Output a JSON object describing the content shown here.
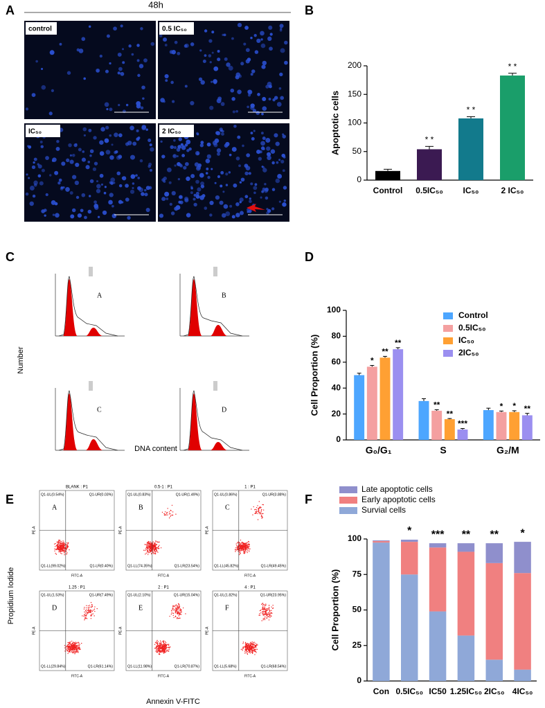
{
  "figure": {
    "panel_letters": [
      "A",
      "B",
      "C",
      "D",
      "E",
      "F"
    ],
    "microscopy": {
      "title": "48h",
      "labels": [
        "control",
        "0.5 IC₅₀",
        "IC₅₀",
        "2 IC₅₀"
      ]
    },
    "cell_cycle": {
      "labels": [
        "A",
        "B",
        "C",
        "D"
      ],
      "y_label": "Number",
      "x_label": "DNA content"
    },
    "flow": {
      "axis_y": "PE-A",
      "axis_x": "FITC-A",
      "y_label": "Propidium Iodide",
      "x_label": "Annexin V-FITC",
      "panels": [
        {
          "title": "BLANK : P1",
          "letter": "A",
          "quadrants": [
            "Q1-UL(0.54%)",
            "Q1-UR(0.03%)",
            "Q1-LL(99.02%)",
            "Q1-LR(0.40%)"
          ]
        },
        {
          "title": "0.5-1 : P1",
          "letter": "B",
          "quadrants": [
            "Q1-UL(0.83%)",
            "Q1-UR(1.49%)",
            "Q1-LL(74.35%)",
            "Q1-LR(23.54%)"
          ]
        },
        {
          "title": "1 : P1",
          "letter": "C",
          "quadrants": [
            "Q1-UL(0.86%)",
            "Q1-UR(3.88%)",
            "Q1-LL(45.82%)",
            "Q1-LR(49.45%)"
          ]
        },
        {
          "title": "1.25 : P1",
          "letter": "D",
          "quadrants": [
            "Q1-UL(1.53%)",
            "Q1-UR(7.49%)",
            "Q1-LL(29.84%)",
            "Q1-LR(61.14%)"
          ]
        },
        {
          "title": "2 : P1",
          "letter": "E",
          "quadrants": [
            "Q1-UL(2.10%)",
            "Q1-UR(15.04%)",
            "Q1-LL(11.98%)",
            "Q1-LR(70.87%)"
          ]
        },
        {
          "title": "4 : P1",
          "letter": "F",
          "quadrants": [
            "Q1-UL(1.82%)",
            "Q1-UR(23.95%)",
            "Q1-LL(5.68%)",
            "Q1-LR(68.54%)"
          ]
        }
      ]
    }
  },
  "chart_data": [
    {
      "type": "bar",
      "y_label": "Apoptotic cells",
      "categories": [
        "Control",
        "0.5IC₅₀",
        "IC₅₀",
        "2 IC₅₀"
      ],
      "values": [
        16,
        54,
        108,
        183
      ],
      "errors": [
        3,
        5,
        3,
        4
      ],
      "colors": [
        "#000000",
        "#3b1a52",
        "#127a8c",
        "#1a9e6a"
      ],
      "annotations": [
        null,
        "* *",
        "* *",
        "* *"
      ],
      "ylim": [
        0,
        200
      ],
      "yticks": [
        0,
        50,
        100,
        150,
        200
      ]
    },
    {
      "type": "grouped_bar",
      "y_label": "Cell Proportion (%)",
      "categories": [
        "G₀/G₁",
        "S",
        "G₂/M"
      ],
      "series": [
        {
          "name": "Control",
          "color": "#4da6ff",
          "values": [
            50,
            30,
            23
          ],
          "errors": [
            1.5,
            1.8,
            1.5
          ],
          "annotations": [
            null,
            null,
            null
          ]
        },
        {
          "name": "0.5IC₅₀",
          "color": "#f4a0a0",
          "values": [
            56.5,
            22.5,
            21.5
          ],
          "errors": [
            1,
            0.8,
            0.8
          ],
          "annotations": [
            "*",
            "**",
            "*"
          ]
        },
        {
          "name": "IC₅₀",
          "color": "#ffa033",
          "values": [
            63.5,
            16,
            21.5
          ],
          "errors": [
            1,
            0.5,
            1
          ],
          "annotations": [
            "**",
            "**",
            "*"
          ]
        },
        {
          "name": "2IC₅₀",
          "color": "#9b8ff0",
          "values": [
            70,
            8,
            19
          ],
          "errors": [
            1.2,
            0.8,
            1.5
          ],
          "annotations": [
            "**",
            "***",
            "**"
          ]
        }
      ],
      "ylim": [
        0,
        100
      ],
      "yticks": [
        0,
        20,
        40,
        60,
        80,
        100
      ]
    },
    {
      "type": "stacked_bar",
      "y_label": "Cell Proportion (%)",
      "categories": [
        "Con",
        "0.5IC₅₀",
        "IC50",
        "1.25IC₅₀",
        "2IC₅₀",
        "4IC₅₀"
      ],
      "series": [
        {
          "name": "Survial cells",
          "color": "#8fa8d8",
          "values": [
            97.5,
            75,
            49,
            32,
            15,
            8
          ]
        },
        {
          "name": "Early apoptotic cells",
          "color": "#f08080",
          "values": [
            1,
            23,
            45,
            59,
            68,
            68
          ]
        },
        {
          "name": "Late apoptotic cells",
          "color": "#8f8fcc",
          "values": [
            0.5,
            1.5,
            3,
            6,
            14,
            22
          ]
        }
      ],
      "annotations": [
        null,
        "*",
        "***",
        "**",
        "**",
        "*"
      ],
      "ylim": [
        0,
        100
      ],
      "yticks": [
        0,
        25,
        50,
        75,
        100
      ]
    }
  ]
}
